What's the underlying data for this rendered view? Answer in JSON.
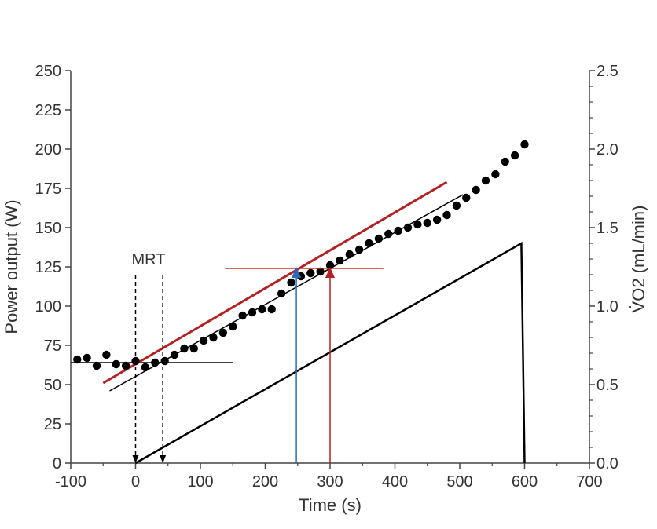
{
  "chart_data": {
    "type": "scatter",
    "xlabel": "Time (s)",
    "ylabel_left": "Power output (W)",
    "ylabel_right": "V̇O2 (mL/min)",
    "xlim": [
      -100,
      700
    ],
    "ylim_left": [
      0,
      250
    ],
    "ylim_right": [
      0.0,
      2.5
    ],
    "x_ticks": [
      -100,
      0,
      100,
      200,
      300,
      400,
      500,
      600,
      700
    ],
    "y_left_ticks": [
      0,
      25,
      50,
      75,
      100,
      125,
      150,
      175,
      200,
      225,
      250
    ],
    "y_right_ticks": [
      "0.0",
      "0.5",
      "1.0",
      "1.5",
      "2.0",
      "2.5"
    ],
    "grid": false,
    "series": [
      {
        "kind": "points",
        "color": "#000000",
        "x": [
          -90,
          -75,
          -60,
          -45,
          -30,
          -15,
          0,
          15,
          30,
          45,
          60,
          75,
          90,
          105,
          120,
          135,
          150,
          165,
          180,
          195,
          210,
          225,
          240,
          255,
          270,
          285,
          300,
          315,
          330,
          345,
          360,
          375,
          390,
          405,
          420,
          435,
          450,
          465,
          480,
          495,
          510,
          525,
          540,
          555,
          570,
          585,
          600
        ],
        "y_right": [
          0.66,
          0.67,
          0.62,
          0.69,
          0.63,
          0.62,
          0.65,
          0.61,
          0.64,
          0.65,
          0.69,
          0.73,
          0.73,
          0.78,
          0.8,
          0.83,
          0.87,
          0.94,
          0.96,
          0.98,
          0.98,
          1.08,
          1.15,
          1.19,
          1.21,
          1.22,
          1.26,
          1.29,
          1.33,
          1.36,
          1.4,
          1.43,
          1.46,
          1.48,
          1.5,
          1.52,
          1.53,
          1.55,
          1.58,
          1.64,
          1.69,
          1.74,
          1.8,
          1.84,
          1.92,
          1.96,
          2.03
        ]
      },
      {
        "kind": "line",
        "color": "#000000",
        "role": "power ramp",
        "x": [
          0,
          595,
          595,
          600
        ],
        "y_left": [
          0,
          140,
          140,
          0
        ]
      },
      {
        "kind": "line",
        "color": "#000000",
        "role": "baseline fit",
        "x": [
          -100,
          150
        ],
        "y_right": [
          0.64,
          0.64
        ]
      },
      {
        "kind": "line",
        "color": "#000000",
        "role": "ramp fit",
        "x": [
          -40,
          505
        ],
        "y_right": [
          0.46,
          1.71
        ]
      },
      {
        "kind": "line",
        "color": "#b22222",
        "role": "shifted fit",
        "x": [
          -50,
          480
        ],
        "y_right": [
          0.51,
          1.79
        ]
      }
    ],
    "annotations": {
      "mrt_label": "MRT",
      "mrt_x": [
        0,
        42
      ],
      "horizontal_marker": {
        "color": "#c0392b",
        "y_right": 1.24,
        "x": [
          150,
          370
        ]
      },
      "arrows": [
        {
          "color": "#2a6ab4",
          "x": 248,
          "y_right_top": 1.24
        },
        {
          "color": "#b22222",
          "x": 300,
          "y_right_top": 1.24
        }
      ]
    }
  }
}
